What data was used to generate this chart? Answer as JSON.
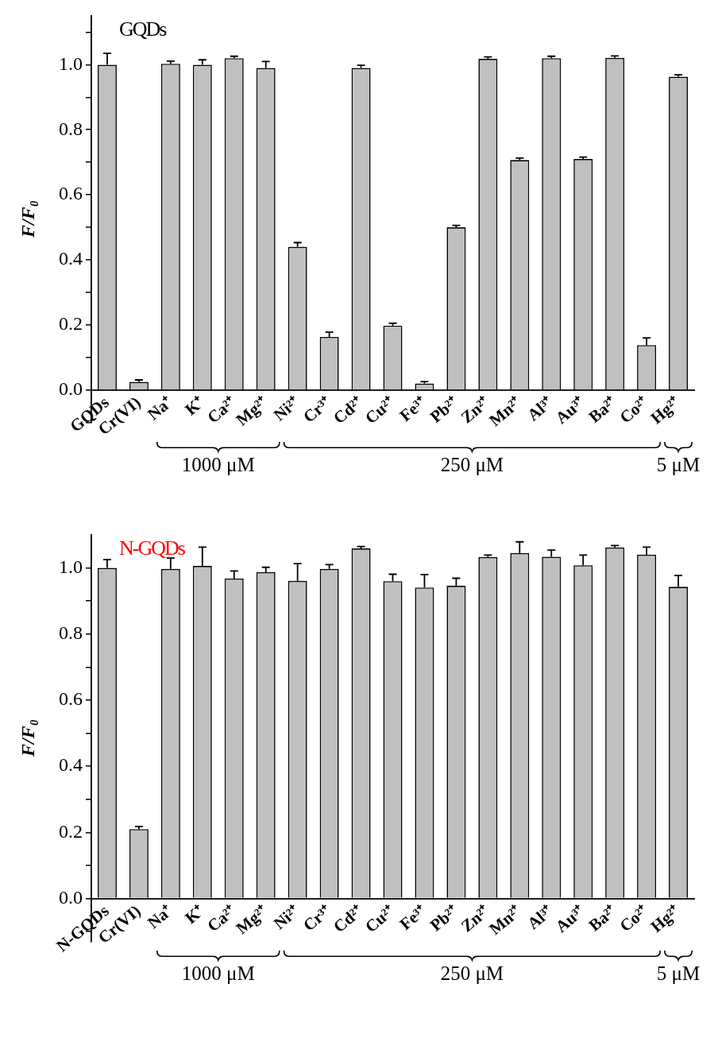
{
  "chart_data": [
    {
      "type": "bar",
      "title": "GQDs",
      "ylabel": "F/F₀",
      "categories": [
        "GQDs",
        "Cr(VI)",
        "Na⁺",
        "K⁺",
        "Ca²⁺",
        "Mg²⁺",
        "Ni²⁺",
        "Cr³⁺",
        "Cd²⁺",
        "Cu²⁺",
        "Fe³⁺",
        "Pb²⁺",
        "Zn²⁺",
        "Mn²⁺",
        "Al³⁺",
        "Au³⁺",
        "Ba²⁺",
        "Co²⁺",
        "Hg²⁺"
      ],
      "values": [
        1.0,
        0.025,
        1.003,
        1.0,
        1.02,
        0.99,
        0.44,
        0.163,
        0.99,
        0.198,
        0.02,
        0.5,
        1.018,
        0.707,
        1.02,
        0.71,
        1.021,
        0.138,
        0.963
      ],
      "errors": [
        [
          1.0,
          1.035
        ],
        [
          0.025,
          0.031
        ],
        [
          1.003,
          1.011
        ],
        [
          1.0,
          1.015
        ],
        [
          1.02,
          1.026
        ],
        [
          0.99,
          1.01
        ],
        [
          0.44,
          0.453
        ],
        [
          0.163,
          0.178
        ],
        [
          0.99,
          0.998
        ],
        [
          0.198,
          0.205
        ],
        [
          0.02,
          0.026
        ],
        [
          0.5,
          0.506
        ],
        [
          1.018,
          1.024
        ],
        [
          0.707,
          0.713
        ],
        [
          1.02,
          1.026
        ],
        [
          0.71,
          0.716
        ],
        [
          1.021,
          1.027
        ],
        [
          0.138,
          0.16
        ],
        [
          0.963,
          0.969
        ]
      ],
      "color": "#c0c0c0",
      "ylim": [
        -0.1,
        1.15
      ],
      "yticks": [
        {
          "value": -0.1,
          "label": null
        },
        {
          "value": 0,
          "label": "0.0"
        },
        {
          "value": 0.1,
          "label": null
        },
        0.2,
        {
          "value": 0.3,
          "label": null
        },
        0.4,
        {
          "value": 0.5,
          "label": null
        },
        0.6,
        {
          "value": 0.7,
          "label": null
        },
        0.8,
        {
          "value": 0.9,
          "label": null
        },
        {
          "value": 1,
          "label": "1.0"
        },
        {
          "value": 1.1,
          "label": null
        }
      ],
      "annotations": [
        "1000 μM",
        "250 μM",
        "5 μM"
      ],
      "grid": false,
      "legend": false
    },
    {
      "type": "bar",
      "title": "N-GQDs",
      "ylabel": "F/F₀",
      "categories": [
        "N-GQDs",
        "Cr(VI)",
        "Na⁺",
        "K⁺",
        "Ca²⁺",
        "Mg²⁺",
        "Ni²⁺",
        "Cr³⁺",
        "Cd²⁺",
        "Cu²⁺",
        "Fe³⁺",
        "Pb²⁺",
        "Zn²⁺",
        "Mn²⁺",
        "Al³⁺",
        "Au³⁺",
        "Ba²⁺",
        "Co²⁺",
        "Hg²⁺"
      ],
      "values": [
        1.0,
        0.21,
        0.997,
        1.006,
        0.968,
        0.987,
        0.961,
        0.997,
        1.059,
        0.96,
        0.941,
        0.946,
        1.033,
        1.045,
        1.034,
        1.008,
        1.062,
        1.04,
        0.943
      ],
      "errors": [
        [
          1.0,
          1.025
        ],
        [
          0.21,
          0.218
        ],
        [
          0.997,
          1.03
        ],
        [
          1.006,
          1.063
        ],
        [
          0.968,
          0.991
        ],
        [
          0.987,
          1.002
        ],
        [
          0.961,
          1.013
        ],
        [
          0.997,
          1.01
        ],
        [
          1.059,
          1.065
        ],
        [
          0.96,
          0.981
        ],
        [
          0.941,
          0.98
        ],
        [
          0.946,
          0.969
        ],
        [
          1.033,
          1.039
        ],
        [
          1.045,
          1.079
        ],
        [
          1.034,
          1.054
        ],
        [
          1.008,
          1.039
        ],
        [
          1.062,
          1.068
        ],
        [
          1.04,
          1.063
        ],
        [
          0.943,
          0.977
        ]
      ],
      "color": "#c0c0c0",
      "ylim": [
        -0.13,
        1.1
      ],
      "yticks": [
        {
          "value": -0.1,
          "label": null
        },
        {
          "value": 0,
          "label": "0.0"
        },
        {
          "value": 0.1,
          "label": null
        },
        0.2,
        {
          "value": 0.3,
          "label": null
        },
        0.4,
        {
          "value": 0.5,
          "label": null
        },
        0.6,
        {
          "value": 0.7,
          "label": null
        },
        0.8,
        {
          "value": 0.9,
          "label": null
        },
        {
          "value": 1,
          "label": "1.0"
        }
      ],
      "annotations": [
        "1000 μM",
        "250 μM",
        "5 μM"
      ],
      "grid": false,
      "legend": false
    }
  ]
}
